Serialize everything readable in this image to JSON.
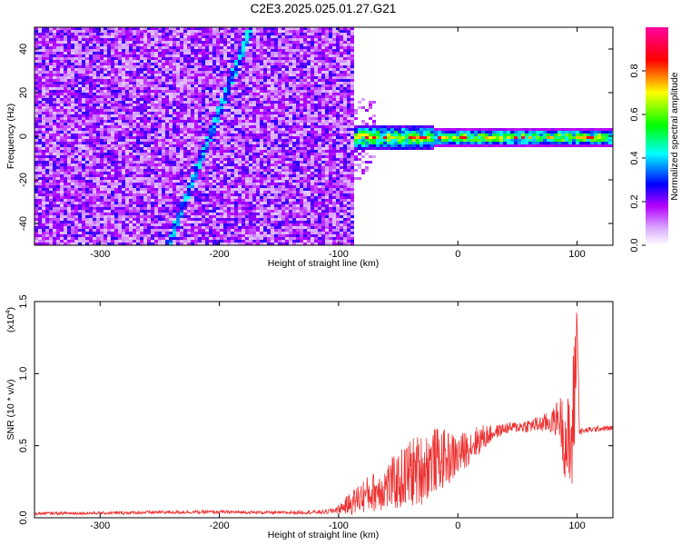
{
  "title": "C2E3.2025.025.01.27.G21",
  "chart_data": [
    {
      "type": "heatmap",
      "xlabel": "Height of straight line (km)",
      "ylabel": "Frequency (Hz)",
      "xlim": [
        -355,
        130
      ],
      "ylim": [
        -50,
        50
      ],
      "xticks": [
        -300,
        -200,
        -100,
        0,
        100
      ],
      "yticks": [
        -40,
        -20,
        0,
        20,
        40
      ],
      "colorbar": {
        "label": "Normalized spectral amplitude",
        "range": [
          0.0,
          1.0
        ],
        "ticks": [
          0.0,
          0.2,
          0.4,
          0.6,
          0.8
        ],
        "colors": [
          "#ffffff",
          "#b400ff",
          "#0000ff",
          "#00ffff",
          "#00ff00",
          "#ffff00",
          "#ff0000",
          "#ff00a0"
        ]
      },
      "features": [
        {
          "x_range": [
            -355,
            -90
          ],
          "y_range": [
            -50,
            50
          ],
          "amplitude": 0.2
        },
        {
          "x_range": [
            -90,
            130
          ],
          "y_center": 0,
          "amplitude": 0.85
        },
        {
          "x_range": [
            -245,
            -175
          ],
          "y_range": [
            -50,
            50
          ],
          "amplitude": 0.4
        }
      ]
    },
    {
      "type": "line",
      "xlabel": "Height of straight line (km)",
      "ylabel": "SNR (10 * v/v)",
      "yscale_label": "(x10",
      "yscale_exp": "4",
      "yscale_close": ")",
      "xlim": [
        -355,
        130
      ],
      "ylim": [
        0,
        15000
      ],
      "xticks": [
        -300,
        -200,
        -100,
        0,
        100
      ],
      "yticks": [
        0.0,
        0.5,
        1.0,
        1.5
      ],
      "ytick_labels": [
        "0.0",
        "0.5",
        "1.0",
        "1.5"
      ],
      "color": "#ee3030",
      "series": [
        {
          "x": [
            -355,
            -300,
            -250,
            -200,
            -150,
            -110,
            -100,
            -90,
            -80,
            -70,
            -60,
            -50,
            -40,
            -30,
            -20,
            -10,
            0,
            10,
            20,
            30,
            40,
            50,
            60,
            70,
            80,
            85,
            90,
            95,
            98,
            100,
            102,
            105,
            110,
            120,
            130
          ],
          "values": [
            300,
            320,
            380,
            400,
            350,
            400,
            600,
            1000,
            1500,
            1800,
            2200,
            2500,
            3100,
            3400,
            4000,
            4100,
            4300,
            5000,
            5500,
            5900,
            6200,
            6300,
            6400,
            6500,
            6700,
            7000,
            5500,
            4500,
            9000,
            14000,
            6000,
            6000,
            6100,
            6200,
            6200
          ],
          "spread": [
            100,
            100,
            120,
            120,
            100,
            150,
            300,
            800,
            1200,
            1400,
            1700,
            2000,
            2500,
            2500,
            2300,
            2000,
            1500,
            1200,
            1000,
            500,
            400,
            400,
            500,
            600,
            900,
            1500,
            3000,
            4000,
            5000,
            1500,
            400,
            200,
            200,
            200,
            200
          ]
        }
      ]
    }
  ]
}
